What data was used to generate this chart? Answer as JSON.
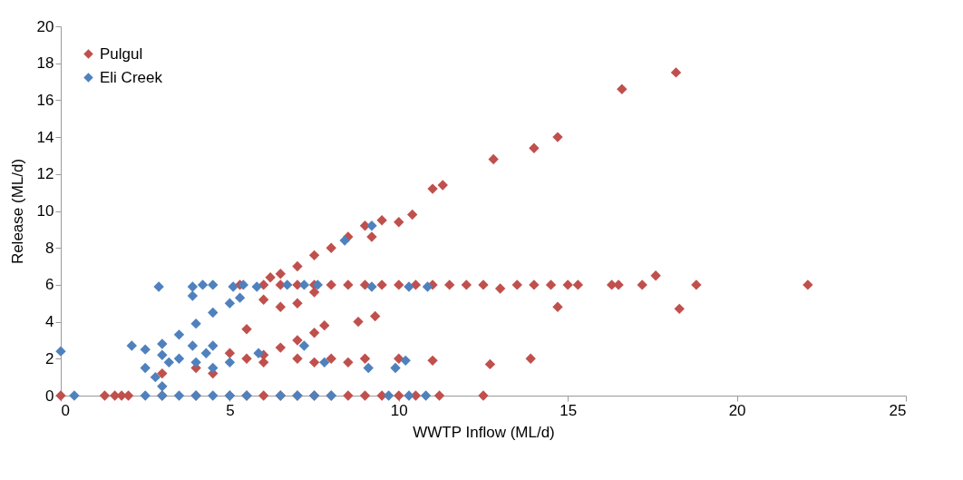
{
  "chart_data": {
    "type": "scatter",
    "xlabel": "WWTP Inflow (ML/d)",
    "ylabel": "Release (ML/d)",
    "xlim": [
      0,
      25
    ],
    "xticks": [
      0,
      5,
      10,
      15,
      20,
      25
    ],
    "ylim": [
      0,
      20
    ],
    "yticks": [
      0,
      2,
      4,
      6,
      8,
      10,
      12,
      14,
      16,
      18,
      20
    ],
    "grid": false,
    "legend": "top left",
    "marker": "diamond",
    "series": [
      {
        "name": "Pulgul",
        "color": "#c0504d",
        "x": [
          0,
          1.3,
          1.6,
          1.8,
          2.0,
          3,
          4,
          5,
          5.5,
          6,
          6.5,
          7,
          7.5,
          8,
          8.5,
          9,
          9.5,
          10,
          10.5,
          11.2,
          12.5,
          6.2,
          6.5,
          7,
          7.5,
          8,
          8.5,
          9,
          9.5,
          10,
          10.4,
          11,
          11.3,
          12.8,
          14,
          14.7,
          16.6,
          18.2,
          6,
          6.5,
          7,
          7.5,
          7.8,
          8.8,
          9.3,
          5.3,
          6,
          6.5,
          7,
          7.5,
          8,
          8.5,
          9,
          9.5,
          10,
          10.5,
          11,
          11.5,
          12,
          12.5,
          13.5,
          14,
          14.5,
          15,
          15.3,
          16.3,
          16.5,
          17.2,
          18.8,
          22.1,
          17.6,
          14.7,
          18.3,
          13,
          5.5,
          6,
          6.5,
          7,
          7.5,
          9.2,
          4,
          5,
          5.5,
          6,
          7,
          7.5,
          8,
          8.5,
          9,
          10,
          11,
          12.7,
          13.9,
          3,
          4.5
        ],
        "values": [
          0,
          0,
          0,
          0,
          0,
          0,
          0,
          0,
          0,
          0,
          0,
          0,
          0,
          0,
          0,
          0,
          0,
          0,
          0,
          0,
          0,
          6.4,
          6.6,
          7,
          7.6,
          8,
          8.6,
          9.2,
          9.5,
          9.4,
          9.8,
          11.2,
          11.4,
          12.8,
          13.4,
          14,
          16.6,
          17.5,
          2.2,
          2.6,
          3,
          3.4,
          3.8,
          4,
          4.3,
          6,
          6,
          6,
          6,
          6,
          6,
          6,
          6,
          6,
          6,
          6,
          6,
          6,
          6,
          6,
          6,
          6,
          6,
          6,
          6,
          6,
          6,
          6,
          6,
          6,
          6.5,
          4.8,
          4.7,
          5.8,
          3.6,
          5.2,
          4.8,
          5,
          5.6,
          8.6,
          1.5,
          2.3,
          2,
          1.8,
          2,
          1.8,
          2,
          1.8,
          2,
          2,
          1.9,
          1.7,
          2,
          1.2,
          1.2
        ]
      },
      {
        "name": "Eli Creek",
        "color": "#4f81bd",
        "x": [
          0,
          0.4,
          2.1,
          2.5,
          3,
          3.5,
          4,
          4.5,
          5,
          5.3,
          8.4,
          9.2,
          2.5,
          2.8,
          3,
          3.2,
          3,
          3.5,
          4,
          4.5,
          4.3,
          4.5,
          3.9,
          2.9,
          3.9,
          4.2,
          4.5,
          3.9,
          5.1,
          5.4,
          5.8,
          6.7,
          7.2,
          7.6,
          9.2,
          10.3,
          10.85,
          7.2,
          5.85,
          5,
          7.8,
          9.1,
          9.9,
          10.2,
          2.5,
          3,
          3.5,
          4,
          4.5,
          5,
          5.5,
          6.5,
          7,
          7.5,
          8,
          9.7,
          10.3,
          10.8
        ],
        "values": [
          2.4,
          0,
          2.7,
          2.5,
          2.8,
          3.3,
          3.9,
          4.5,
          5,
          5.3,
          8.4,
          9.2,
          1.5,
          1,
          0.5,
          1.8,
          2.2,
          2,
          1.8,
          1.5,
          2.3,
          2.7,
          2.7,
          5.9,
          5.9,
          6,
          6,
          5.4,
          5.9,
          6,
          5.9,
          6,
          6,
          6,
          5.9,
          5.9,
          5.9,
          2.7,
          2.3,
          1.8,
          1.8,
          1.5,
          1.5,
          1.9,
          0,
          0,
          0,
          0,
          0,
          0,
          0,
          0,
          0,
          0,
          0,
          0,
          0,
          0
        ]
      }
    ]
  }
}
